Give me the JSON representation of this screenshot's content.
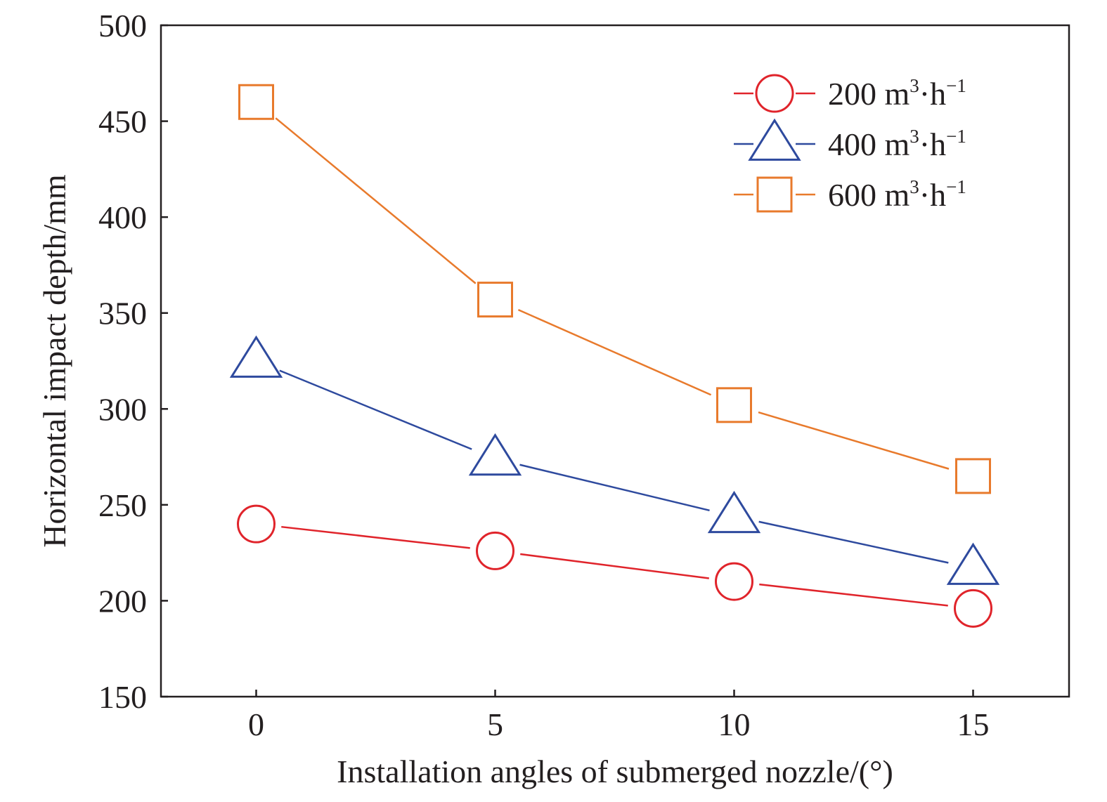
{
  "chart_data": {
    "type": "line",
    "title": "",
    "xlabel": "Installation angles of submerged nozzle/(°)",
    "ylabel": "Horizontal impact depth/mm",
    "x": [
      0,
      5,
      10,
      15
    ],
    "xlim": [
      -2,
      17
    ],
    "ylim": [
      150,
      500
    ],
    "xticks": [
      0,
      5,
      10,
      15
    ],
    "yticks": [
      150,
      200,
      250,
      300,
      350,
      400,
      450,
      500
    ],
    "grid": false,
    "legend_position": "top-right",
    "series": [
      {
        "name": "200 m3·h−1",
        "label_main": "200 m",
        "label_sup1": "3",
        "label_mid": "·h",
        "label_sup2": "−1",
        "marker": "circle",
        "color": "#e0242b",
        "values": [
          240,
          226,
          210,
          196
        ]
      },
      {
        "name": "400 m3·h−1",
        "label_main": "400 m",
        "label_sup1": "3",
        "label_mid": "·h",
        "label_sup2": "−1",
        "marker": "triangle",
        "color": "#2e4a9e",
        "values": [
          325,
          274,
          244,
          217
        ]
      },
      {
        "name": "600 m3·h−1",
        "label_main": "600 m",
        "label_sup1": "3",
        "label_mid": "·h",
        "label_sup2": "−1",
        "marker": "square",
        "color": "#e87a2c",
        "values": [
          460,
          357,
          302,
          265
        ]
      }
    ]
  }
}
